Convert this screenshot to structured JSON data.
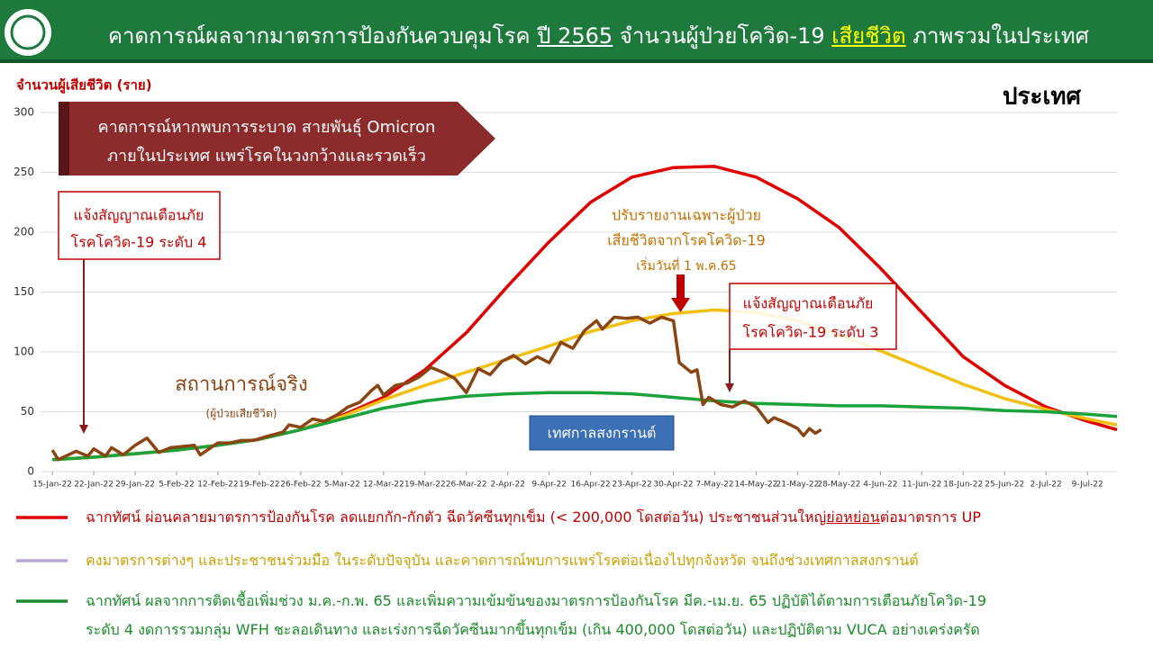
{
  "header": {
    "title_parts": [
      {
        "text": "คาดการณ์ผลจากมาตรการป้องกันควบคุมโรค "
      },
      {
        "text": "ปี 2565",
        "underline": true
      },
      {
        "text": " จำนวนผู้ป่วยโควิด-19 "
      },
      {
        "text": "เสียชีวิต",
        "underline": true,
        "color": "#ffff00"
      },
      {
        "text": " ภาพรวมในประเทศ"
      }
    ]
  },
  "chart_data": {
    "type": "line",
    "y_label": "จำนวนผู้เสียชีวิต (ราย)",
    "region": "ประเทศ",
    "ylim": [
      0,
      300
    ],
    "yticks": [
      0,
      50,
      100,
      150,
      200,
      250,
      300
    ],
    "grid": true,
    "xlim": [
      "13-Jan-22",
      "14-Jul-22"
    ],
    "xticks": [
      "15-Jan-22",
      "22-Jan-22",
      "29-Jan-22",
      "5-Feb-22",
      "12-Feb-22",
      "19-Feb-22",
      "26-Feb-22",
      "5-Mar-22",
      "12-Mar-22",
      "19-Mar-22",
      "26-Mar-22",
      "2-Apr-22",
      "9-Apr-22",
      "16-Apr-22",
      "23-Apr-22",
      "30-Apr-22",
      "7-May-22",
      "14-May-22",
      "21-May-22",
      "28-May-22",
      "4-Jun-22",
      "11-Jun-22",
      "18-Jun-22",
      "25-Jun-22",
      "2-Jul-22",
      "9-Jul-22"
    ],
    "series": [
      {
        "color": "#e00000",
        "x": [
          "15-Jan-22",
          "22-Jan-22",
          "29-Jan-22",
          "5-Feb-22",
          "12-Feb-22",
          "19-Feb-22",
          "26-Feb-22",
          "5-Mar-22",
          "12-Mar-22",
          "19-Mar-22",
          "26-Mar-22",
          "2-Apr-22",
          "9-Apr-22",
          "16-Apr-22",
          "23-Apr-22",
          "30-Apr-22",
          "7-May-22",
          "14-May-22",
          "21-May-22",
          "28-May-22",
          "4-Jun-22",
          "11-Jun-22",
          "18-Jun-22",
          "25-Jun-22",
          "2-Jul-22",
          "9-Jul-22",
          "14-Jul-22"
        ],
        "values": [
          10,
          12,
          15,
          18,
          22,
          27,
          35,
          47,
          62,
          85,
          116,
          155,
          192,
          225,
          246,
          254,
          255,
          246,
          228,
          204,
          170,
          133,
          96,
          72,
          54,
          42,
          35
        ]
      },
      {
        "color": "#f2c012",
        "x": [
          "15-Jan-22",
          "22-Jan-22",
          "29-Jan-22",
          "5-Feb-22",
          "12-Feb-22",
          "19-Feb-22",
          "26-Feb-22",
          "5-Mar-22",
          "12-Mar-22",
          "19-Mar-22",
          "26-Mar-22",
          "2-Apr-22",
          "9-Apr-22",
          "16-Apr-22",
          "23-Apr-22",
          "30-Apr-22",
          "7-May-22",
          "14-May-22",
          "21-May-22",
          "28-May-22",
          "4-Jun-22",
          "11-Jun-22",
          "18-Jun-22",
          "25-Jun-22",
          "2-Jul-22",
          "9-Jul-22",
          "14-Jul-22"
        ],
        "values": [
          10,
          12,
          15,
          18,
          22,
          27,
          35,
          46,
          60,
          72,
          83,
          94,
          105,
          117,
          126,
          132,
          135,
          133,
          126,
          114,
          101,
          87,
          73,
          61,
          52,
          44,
          39
        ]
      },
      {
        "color": "#1aa33a",
        "x": [
          "15-Jan-22",
          "22-Jan-22",
          "29-Jan-22",
          "5-Feb-22",
          "12-Feb-22",
          "19-Feb-22",
          "26-Feb-22",
          "5-Mar-22",
          "12-Mar-22",
          "19-Mar-22",
          "26-Mar-22",
          "2-Apr-22",
          "9-Apr-22",
          "16-Apr-22",
          "23-Apr-22",
          "30-Apr-22",
          "7-May-22",
          "14-May-22",
          "21-May-22",
          "28-May-22",
          "4-Jun-22",
          "11-Jun-22",
          "18-Jun-22",
          "25-Jun-22",
          "2-Jul-22",
          "9-Jul-22",
          "14-Jul-22"
        ],
        "values": [
          10,
          12,
          15,
          18,
          22,
          27,
          35,
          44,
          53,
          59,
          63,
          65,
          66,
          66,
          65,
          62,
          59,
          57,
          56,
          55,
          55,
          54,
          53,
          51,
          50,
          48,
          46
        ]
      },
      {
        "color": "#8b4513",
        "x": [
          "15-Jan-22",
          "16-Jan-22",
          "19-Jan-22",
          "21-Jan-22",
          "22-Jan-22",
          "24-Jan-22",
          "25-Jan-22",
          "27-Jan-22",
          "29-Jan-22",
          "31-Jan-22",
          "2-Feb-22",
          "4-Feb-22",
          "6-Feb-22",
          "8-Feb-22",
          "9-Feb-22",
          "12-Feb-22",
          "14-Feb-22",
          "16-Feb-22",
          "18-Feb-22",
          "20-Feb-22",
          "23-Feb-22",
          "24-Feb-22",
          "26-Feb-22",
          "28-Feb-22",
          "2-Mar-22",
          "4-Mar-22",
          "6-Mar-22",
          "8-Mar-22",
          "10-Mar-22",
          "11-Mar-22",
          "12-Mar-22",
          "14-Mar-22",
          "16-Mar-22",
          "18-Mar-22",
          "20-Mar-22",
          "22-Mar-22",
          "24-Mar-22",
          "26-Mar-22",
          "28-Mar-22",
          "30-Mar-22",
          "1-Apr-22",
          "3-Apr-22",
          "5-Apr-22",
          "7-Apr-22",
          "9-Apr-22",
          "11-Apr-22",
          "13-Apr-22",
          "15-Apr-22",
          "17-Apr-22",
          "18-Apr-22",
          "20-Apr-22",
          "22-Apr-22",
          "24-Apr-22",
          "26-Apr-22",
          "28-Apr-22",
          "30-Apr-22",
          "1-May-22",
          "3-May-22",
          "4-May-22",
          "5-May-22",
          "6-May-22",
          "8-May-22",
          "10-May-22",
          "12-May-22",
          "14-May-22",
          "16-May-22",
          "17-May-22",
          "19-May-22",
          "21-May-22",
          "22-May-22",
          "23-May-22",
          "24-May-22",
          "25-May-22"
        ],
        "values": [
          18,
          10,
          17,
          13,
          19,
          13,
          20,
          14,
          22,
          28,
          16,
          20,
          21,
          22,
          14,
          24,
          24,
          26,
          26,
          29,
          33,
          39,
          37,
          44,
          42,
          47,
          54,
          58,
          68,
          72,
          64,
          72,
          74,
          79,
          87,
          83,
          78,
          66,
          86,
          81,
          92,
          97,
          90,
          96,
          91,
          108,
          103,
          118,
          126,
          119,
          129,
          128,
          129,
          124,
          129,
          126,
          91,
          83,
          85,
          56,
          62,
          56,
          54,
          59,
          54,
          41,
          45,
          41,
          36,
          30,
          36,
          32,
          35
        ]
      }
    ],
    "annotations": {
      "omicron": [
        "คาดการณ์หากพบการระบาด สายพันธุ์ Omicron",
        "ภายในประเทศ แพร่โรคในวงกว้างและรวดเร็ว"
      ],
      "alert4": [
        "แจ้งสัญญาณเตือนภัย",
        "โรคโควิด-19 ระดับ 4"
      ],
      "report": [
        "ปรับรายงานเฉพาะผู้ป่วย",
        "เสียชีวิตจากโรคโควิด-19",
        "เริ่มวันที่ 1 พ.ค.65"
      ],
      "alert3": [
        "แจ้งสัญญาณเตือนภัย",
        "โรคโควิด-19 ระดับ 3"
      ],
      "actual": "สถานการณ์จริง",
      "actual_sub": "(ผู้ป่วยเสียชีวิต)",
      "songkran": "เทศกาลสงกรานต์"
    }
  },
  "legend": [
    {
      "color": "#e00000",
      "text_color": "#c00000",
      "lines": [
        [
          {
            "text": "ฉากทัศน์ ผ่อนคลายมาตรการป้องกันโรค ลดแยกกัก-กักตัว ฉีดวัคซีนทุกเข็ม (< 200,000 โดสต่อวัน) ประชาชนส่วนใหญ่"
          },
          {
            "text": "ย่อหย่อน",
            "underline": true
          },
          {
            "text": "ต่อมาตรการ UP"
          }
        ]
      ]
    },
    {
      "color": "#b4a7d6",
      "text_color": "#c9a000",
      "lines": [
        [
          {
            "text": "คงมาตรการต่างๆ และประชาชนร่วมมือ ในระดับปัจจุบัน และคาดการณ์พบการแพร่โรคต่อเนื่องไปทุกจังหวัด จนถึงช่วงเทศกาลสงกรานต์"
          }
        ]
      ]
    },
    {
      "color": "#1a8a2a",
      "text_color": "#1a8a2a",
      "lines": [
        [
          {
            "text": "ฉากทัศน์ ผลจากการติดเชื้อเพิ่มช่วง ม.ค.-ก.พ. 65 และเพิ่มความเข้มข้นของมาตรการป้องกันโรค มีค.-เม.ย. 65 ปฏิบัติได้ตามการเตือนภัยโควิด-19"
          }
        ],
        [
          {
            "text": "ระดับ 4 งดการรวมกลุ่ม WFH ชะลอเดินทาง และเร่งการฉีดวัคซีนมากขึ้นทุกเข็ม (เกิน 400,000 โดสต่อวัน) และปฏิบัติตาม VUCA อย่างเคร่งครัด"
          }
        ]
      ]
    }
  ]
}
